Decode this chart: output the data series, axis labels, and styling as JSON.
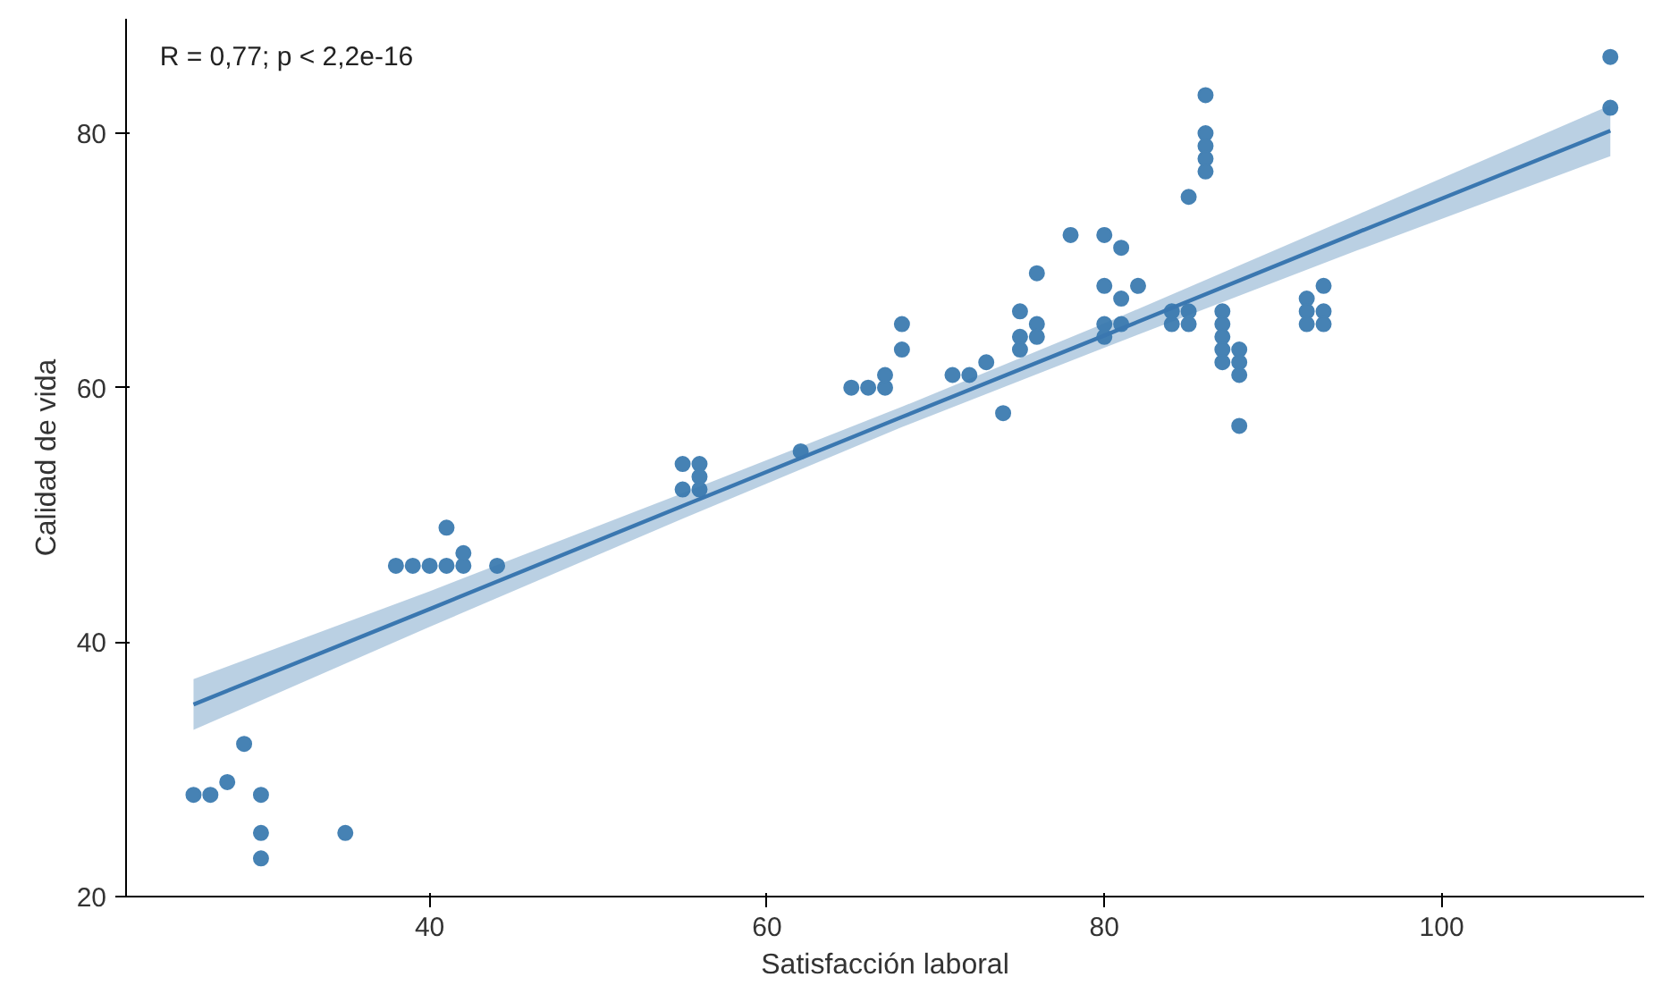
{
  "chart_data": {
    "type": "scatter",
    "xlabel": "Satisfacción laboral",
    "ylabel": "Calidad de vida",
    "annotations": [
      "R = 0,77; p < 2,2e-16"
    ],
    "xlim": [
      22,
      112
    ],
    "ylim": [
      20,
      89
    ],
    "xticks": [
      40,
      60,
      80,
      100
    ],
    "yticks": [
      20,
      40,
      60,
      80
    ],
    "grid": false,
    "series": [
      {
        "color": "#4682b4",
        "marker": "circle",
        "x": [
          26,
          27,
          28,
          29,
          30,
          30,
          30,
          35,
          38,
          39,
          40,
          41,
          42,
          41,
          42,
          44,
          55,
          56,
          56,
          55,
          56,
          62,
          65,
          66,
          67,
          67,
          68,
          68,
          71,
          72,
          73,
          74,
          75,
          75,
          75,
          76,
          76,
          76,
          78,
          80,
          81,
          80,
          81,
          82,
          80,
          81,
          80,
          84,
          84,
          85,
          85,
          85,
          86,
          86,
          86,
          86,
          86,
          87,
          87,
          87,
          87,
          87,
          88,
          88,
          88,
          88,
          92,
          92,
          92,
          93,
          93,
          93,
          110,
          110
        ],
        "values": [
          28,
          28,
          29,
          32,
          28,
          25,
          23,
          25,
          46,
          46,
          46,
          46,
          46,
          49,
          47,
          46,
          54,
          54,
          53,
          52,
          52,
          55,
          60,
          60,
          60,
          61,
          65,
          63,
          61,
          61,
          62,
          58,
          66,
          64,
          63,
          69,
          65,
          64,
          72,
          72,
          71,
          68,
          67,
          68,
          65,
          65,
          64,
          66,
          65,
          66,
          65,
          75,
          83,
          80,
          79,
          78,
          77,
          66,
          65,
          64,
          63,
          62,
          63,
          62,
          61,
          57,
          67,
          66,
          65,
          68,
          66,
          65,
          86,
          82
        ]
      },
      {
        "type": "line",
        "color": "#3a77b0",
        "x": [
          26,
          40,
          55,
          68,
          80,
          95,
          110
        ],
        "values": [
          35.1,
          42.6,
          50.7,
          57.7,
          64.1,
          72.2,
          80.2
        ],
        "lower": [
          33.1,
          41.2,
          49.7,
          56.9,
          63.15,
          70.8,
          78.2
        ],
        "upper": [
          37.1,
          44.0,
          51.7,
          58.5,
          65.05,
          73.6,
          82.2
        ],
        "marker": "none"
      }
    ]
  }
}
